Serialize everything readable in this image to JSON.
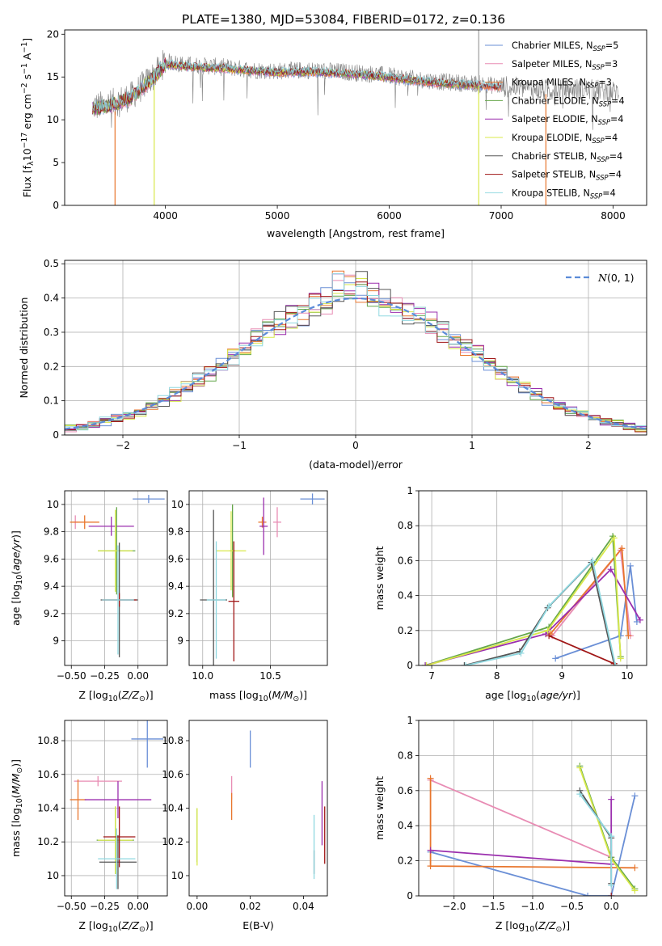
{
  "figure": {
    "suptitle": "PLATE=1380, MJD=53084, FIBERID=0172, z=0.136"
  },
  "model_colors": {
    "Chabrier MILES": "#6a8fd6",
    "Salpeter MILES": "#e88cb4",
    "Kroupa MILES": "#e8762d",
    "Chabrier ELODIE": "#64a64a",
    "Salpeter ELODIE": "#9b2fae",
    "Kroupa ELODIE": "#d8e84a",
    "Chabrier STELIB": "#555555",
    "Salpeter STELIB": "#a01616",
    "Kroupa STELIB": "#8fd8e0"
  },
  "chart_data": [
    {
      "id": "spectrum",
      "type": "line",
      "title": "",
      "xlabel": "wavelength [Angstrom, rest frame]",
      "ylabel": "Flux [f_λ10^-17 erg cm^-2 s^-1 A^-1]",
      "xlim": [
        3100,
        8300
      ],
      "ylim": [
        0,
        20.5
      ],
      "xticks": [
        4000,
        5000,
        6000,
        7000,
        8000
      ],
      "yticks": [
        0,
        5,
        10,
        15,
        20
      ],
      "grid": false,
      "legend_position": "top-right",
      "legend": [
        "Chabrier MILES, N_SSP=5",
        "Salpeter MILES, N_SSP=3",
        "Kroupa MILES, N_SSP=3",
        "Chabrier ELODIE, N_SSP=4",
        "Salpeter ELODIE, N_SSP=4",
        "Kroupa ELODIE, N_SSP=4",
        "Chabrier STELIB, N_SSP=4",
        "Salpeter STELIB, N_SSP=4",
        "Kroupa STELIB, N_SSP=4"
      ],
      "data_continuum": {
        "x": [
          3350,
          3500,
          3700,
          3900,
          4000,
          4200,
          4500,
          4800,
          5000,
          5300,
          5600,
          5900,
          6200,
          6500,
          6800,
          7100,
          7400,
          7700,
          8000,
          8050
        ],
        "y": [
          11.5,
          11.8,
          12.8,
          15.2,
          16.8,
          16.4,
          16.2,
          15.8,
          15.7,
          15.8,
          15.6,
          15.3,
          14.8,
          14.4,
          14.2,
          13.8,
          13.5,
          13.6,
          13.3,
          13.2
        ]
      },
      "model_continuum": {
        "x": [
          3350,
          3500,
          3700,
          3900,
          4000,
          4200,
          4500,
          4800,
          5000,
          5300,
          5600,
          5900,
          6200,
          6500,
          6800,
          7000
        ],
        "y": [
          11.3,
          11.6,
          12.6,
          15.0,
          16.5,
          16.2,
          16.0,
          15.7,
          15.5,
          15.6,
          15.4,
          15.1,
          14.6,
          14.2,
          14.0,
          13.8
        ]
      },
      "dropouts": [
        {
          "model": "Kroupa MILES",
          "x": 3550,
          "ymin": 0,
          "ymax": 11
        },
        {
          "model": "Kroupa ELODIE",
          "x": 3900,
          "ymin": 0,
          "ymax": 14
        },
        {
          "model": "Kroupa ELODIE",
          "x": 6800,
          "ymin": 0,
          "ymax": 14
        },
        {
          "model": "Kroupa MILES",
          "x": 7400,
          "ymin": 0,
          "ymax": 13
        }
      ]
    },
    {
      "id": "residuals",
      "type": "line",
      "title": "",
      "xlabel": "(data-model)/error",
      "ylabel": "Normed distribution",
      "xlim": [
        -2.5,
        2.5
      ],
      "ylim": [
        0,
        0.51
      ],
      "xticks": [
        -2,
        -1,
        0,
        1,
        2
      ],
      "yticks": [
        0.0,
        0.1,
        0.2,
        0.3,
        0.4,
        0.5
      ],
      "grid": true,
      "legend_position": "top-right",
      "legend": [
        "N(0,1)"
      ],
      "curve": {
        "name": "N(0,1)",
        "mean": 0,
        "sigma": 1,
        "style": "dashed"
      }
    },
    {
      "id": "age-vs-z",
      "type": "scatter",
      "xlabel": "Z [log10(Z/Z☉)]",
      "ylabel": "age [log10(age/yr)]",
      "xlim": [
        -0.55,
        0.22
      ],
      "ylim": [
        8.82,
        10.1
      ],
      "xticks": [
        -0.5,
        -0.25,
        0.0
      ],
      "xticklabels": [
        "−0.50",
        "−0.25",
        "0.00"
      ],
      "yticks": [
        9.0,
        9.2,
        9.4,
        9.6,
        9.8,
        10.0
      ],
      "grid": true,
      "points": [
        {
          "model": "Chabrier MILES",
          "x": 0.08,
          "y": 10.04,
          "xerr": 0.12,
          "yerr": 0.03
        },
        {
          "model": "Salpeter MILES",
          "x": -0.47,
          "y": 9.87,
          "xerr": 0.02,
          "yerr": 0.05
        },
        {
          "model": "Kroupa MILES",
          "x": -0.4,
          "y": 9.87,
          "xerr": 0.11,
          "yerr": 0.05
        },
        {
          "model": "Salpeter ELODIE",
          "x": -0.2,
          "y": 9.84,
          "xerr": 0.17,
          "yerr": 0.07
        },
        {
          "model": "Chabrier ELODIE",
          "x": -0.16,
          "y": 9.66,
          "xerr": 0.14,
          "yerr": 0.32
        },
        {
          "model": "Kroupa ELODIE",
          "x": -0.17,
          "y": 9.66,
          "xerr": 0.13,
          "yerr": 0.3
        },
        {
          "model": "Chabrier STELIB",
          "x": -0.14,
          "y": 9.3,
          "xerr": 0.14,
          "yerr": 0.42
        },
        {
          "model": "Salpeter STELIB",
          "x": -0.14,
          "y": 9.3,
          "xerr": 0.13,
          "yerr": 0.05
        },
        {
          "model": "Kroupa STELIB",
          "x": -0.15,
          "y": 9.3,
          "xerr": 0.12,
          "yerr": 0.4
        }
      ]
    },
    {
      "id": "age-vs-mass",
      "type": "scatter",
      "xlabel": "mass [log10(M/M☉)]",
      "ylabel": "",
      "xlim": [
        9.9,
        10.92
      ],
      "ylim": [
        8.82,
        10.1
      ],
      "xticks": [
        10.0,
        10.5
      ],
      "xticklabels": [
        "10.0",
        "10.5"
      ],
      "yticks": [
        9.0,
        9.2,
        9.4,
        9.6,
        9.8,
        10.0
      ],
      "grid": true,
      "points": [
        {
          "model": "Chabrier MILES",
          "x": 10.81,
          "y": 10.04,
          "xerr": 0.09,
          "yerr": 0.04
        },
        {
          "model": "Salpeter MILES",
          "x": 10.55,
          "y": 9.87,
          "xerr": 0.03,
          "yerr": 0.11
        },
        {
          "model": "Kroupa MILES",
          "x": 10.44,
          "y": 9.87,
          "xerr": 0.03,
          "yerr": 0.04
        },
        {
          "model": "Salpeter ELODIE",
          "x": 10.45,
          "y": 9.84,
          "xerr": 0.03,
          "yerr": 0.21
        },
        {
          "model": "Chabrier ELODIE",
          "x": 10.22,
          "y": 9.66,
          "xerr": 0.02,
          "yerr": 0.34
        },
        {
          "model": "Kroupa ELODIE",
          "x": 10.21,
          "y": 9.66,
          "xerr": 0.11,
          "yerr": 0.29
        },
        {
          "model": "Chabrier STELIB",
          "x": 10.08,
          "y": 9.3,
          "xerr": 0.1,
          "yerr": 0.66
        },
        {
          "model": "Salpeter STELIB",
          "x": 10.23,
          "y": 9.29,
          "xerr": 0.04,
          "yerr": 0.44
        },
        {
          "model": "Kroupa STELIB",
          "x": 10.1,
          "y": 9.3,
          "xerr": 0.07,
          "yerr": 0.43
        }
      ]
    },
    {
      "id": "weight-vs-age",
      "type": "line",
      "xlabel": "age [log10(age/yr)]",
      "ylabel": "mass weight",
      "xlim": [
        6.8,
        10.3
      ],
      "ylim": [
        0,
        1.0
      ],
      "xticks": [
        7,
        8,
        9,
        10
      ],
      "yticks": [
        0.0,
        0.2,
        0.4,
        0.6,
        0.8,
        1.0
      ],
      "grid": true,
      "series": [
        {
          "model": "Chabrier MILES",
          "x": [
            8.9,
            9.9,
            10.05,
            10.15
          ],
          "y": [
            0.04,
            0.17,
            0.57,
            0.25
          ]
        },
        {
          "model": "Salpeter MILES",
          "x": [
            8.85,
            9.9,
            10.05
          ],
          "y": [
            0.17,
            0.66,
            0.17
          ]
        },
        {
          "model": "Kroupa MILES",
          "x": [
            8.82,
            9.92,
            10.02
          ],
          "y": [
            0.18,
            0.67,
            0.17
          ]
        },
        {
          "model": "Chabrier ELODIE",
          "x": [
            6.9,
            8.8,
            9.78,
            9.9
          ],
          "y": [
            0.0,
            0.22,
            0.74,
            0.05
          ]
        },
        {
          "model": "Salpeter ELODIE",
          "x": [
            6.9,
            8.75,
            9.75,
            10.2
          ],
          "y": [
            0.0,
            0.18,
            0.55,
            0.26
          ]
        },
        {
          "model": "Kroupa ELODIE",
          "x": [
            6.92,
            8.78,
            9.8,
            9.9
          ],
          "y": [
            0.0,
            0.2,
            0.73,
            0.04
          ]
        },
        {
          "model": "Chabrier STELIB",
          "x": [
            7.5,
            8.35,
            8.78,
            9.45,
            9.8
          ],
          "y": [
            0.0,
            0.08,
            0.33,
            0.59,
            0.01
          ]
        },
        {
          "model": "Salpeter STELIB",
          "x": [
            8.8,
            9.8
          ],
          "y": [
            0.17,
            0.01
          ]
        },
        {
          "model": "Kroupa STELIB",
          "x": [
            7.52,
            8.37,
            8.8,
            9.47,
            9.82
          ],
          "y": [
            0.0,
            0.07,
            0.34,
            0.6,
            0.0
          ]
        }
      ]
    },
    {
      "id": "mass-vs-z",
      "type": "scatter",
      "xlabel": "Z [log10(Z/Z☉)]",
      "ylabel": "mass [log10(M/M☉)]",
      "xlim": [
        -0.55,
        0.22
      ],
      "ylim": [
        9.88,
        10.92
      ],
      "xticks": [
        -0.5,
        -0.25,
        0.0
      ],
      "xticklabels": [
        "−0.50",
        "−0.25",
        "0.00"
      ],
      "yticks": [
        10.0,
        10.2,
        10.4,
        10.6,
        10.8
      ],
      "grid": true,
      "points": [
        {
          "model": "Chabrier MILES",
          "x": 0.07,
          "y": 10.81,
          "xerr": 0.12,
          "yerr": 0.17
        },
        {
          "model": "Salpeter MILES",
          "x": -0.3,
          "y": 10.56,
          "xerr": 0.18,
          "yerr": 0.03
        },
        {
          "model": "Kroupa MILES",
          "x": -0.45,
          "y": 10.45,
          "xerr": 0.06,
          "yerr": 0.12
        },
        {
          "model": "Salpeter ELODIE",
          "x": -0.15,
          "y": 10.45,
          "xerr": 0.25,
          "yerr": 0.11
        },
        {
          "model": "Chabrier ELODIE",
          "x": -0.17,
          "y": 10.21,
          "xerr": 0.14,
          "yerr": 0.2
        },
        {
          "model": "Kroupa ELODIE",
          "x": -0.17,
          "y": 10.21,
          "xerr": 0.13,
          "yerr": 0.2
        },
        {
          "model": "Chabrier STELIB",
          "x": -0.15,
          "y": 10.08,
          "xerr": 0.14,
          "yerr": 0.16
        },
        {
          "model": "Salpeter STELIB",
          "x": -0.14,
          "y": 10.23,
          "xerr": 0.12,
          "yerr": 0.18
        },
        {
          "model": "Kroupa STELIB",
          "x": -0.16,
          "y": 10.1,
          "xerr": 0.14,
          "yerr": 0.18
        }
      ]
    },
    {
      "id": "mass-vs-ebv",
      "type": "scatter",
      "xlabel": "E(B-V)",
      "ylabel": "",
      "xlim": [
        -0.003,
        0.049
      ],
      "ylim": [
        9.88,
        10.92
      ],
      "xticks": [
        0.0,
        0.02,
        0.04
      ],
      "xticklabels": [
        "0.00",
        "0.02",
        "0.04"
      ],
      "yticks": [
        10.0,
        10.2,
        10.4,
        10.6,
        10.8
      ],
      "grid": false,
      "points": [
        {
          "model": "Chabrier MILES",
          "x": 0.02,
          "y": 10.75,
          "yerr": 0.11
        },
        {
          "model": "Salpeter MILES",
          "x": 0.013,
          "y": 10.52,
          "yerr": 0.07
        },
        {
          "model": "Kroupa MILES",
          "x": 0.013,
          "y": 10.41,
          "yerr": 0.08
        },
        {
          "model": "Salpeter ELODIE",
          "x": 0.047,
          "y": 10.37,
          "yerr": 0.19
        },
        {
          "model": "Chabrier ELODIE",
          "x": 0.0,
          "y": 10.24,
          "yerr": 0.16
        },
        {
          "model": "Kroupa ELODIE",
          "x": 0.0,
          "y": 10.23,
          "yerr": 0.17
        },
        {
          "model": "Chabrier STELIB",
          "x": 0.044,
          "y": 10.08,
          "yerr": 0.07
        },
        {
          "model": "Salpeter STELIB",
          "x": 0.048,
          "y": 10.24,
          "yerr": 0.17
        },
        {
          "model": "Kroupa STELIB",
          "x": 0.044,
          "y": 10.17,
          "yerr": 0.19
        }
      ]
    },
    {
      "id": "weight-vs-z",
      "type": "line",
      "xlabel": "Z [log10(Z/Z☉)]",
      "ylabel": "mass weight",
      "xlim": [
        -2.45,
        0.45
      ],
      "ylim": [
        0,
        1.0
      ],
      "xticks": [
        -2.0,
        -1.5,
        -1.0,
        -0.5,
        0.0
      ],
      "xticklabels": [
        "−2.0",
        "−1.5",
        "−1.0",
        "−0.5",
        "0.0"
      ],
      "yticks": [
        0.0,
        0.2,
        0.4,
        0.6,
        0.8,
        1.0
      ],
      "grid": true,
      "series": [
        {
          "model": "Chabrier MILES",
          "x": [
            -2.3,
            -0.3,
            0.0,
            0.3
          ],
          "y": [
            0.25,
            0.0,
            0.0,
            0.57
          ]
        },
        {
          "model": "Salpeter MILES",
          "x": [
            -2.3,
            0.0
          ],
          "y": [
            0.66,
            0.22
          ]
        },
        {
          "model": "Kroupa MILES",
          "x": [
            -2.3,
            -2.3,
            0.3
          ],
          "y": [
            0.67,
            0.17,
            0.16
          ]
        },
        {
          "model": "Chabrier ELODIE",
          "x": [
            -0.4,
            0.0,
            0.3
          ],
          "y": [
            0.74,
            0.22,
            0.04
          ]
        },
        {
          "model": "Salpeter ELODIE",
          "x": [
            -2.3,
            0.0,
            0.0
          ],
          "y": [
            0.26,
            0.18,
            0.55
          ]
        },
        {
          "model": "Kroupa ELODIE",
          "x": [
            -0.4,
            0.0,
            0.3
          ],
          "y": [
            0.73,
            0.21,
            0.03
          ]
        },
        {
          "model": "Chabrier STELIB",
          "x": [
            -0.4,
            0.0,
            0.0
          ],
          "y": [
            0.6,
            0.33,
            0.07
          ]
        },
        {
          "model": "Salpeter STELIB",
          "x": [
            0.0
          ],
          "y": [
            0.0
          ]
        },
        {
          "model": "Kroupa STELIB",
          "x": [
            -0.4,
            0.0,
            0.0
          ],
          "y": [
            0.58,
            0.34,
            0.06
          ]
        }
      ]
    }
  ]
}
